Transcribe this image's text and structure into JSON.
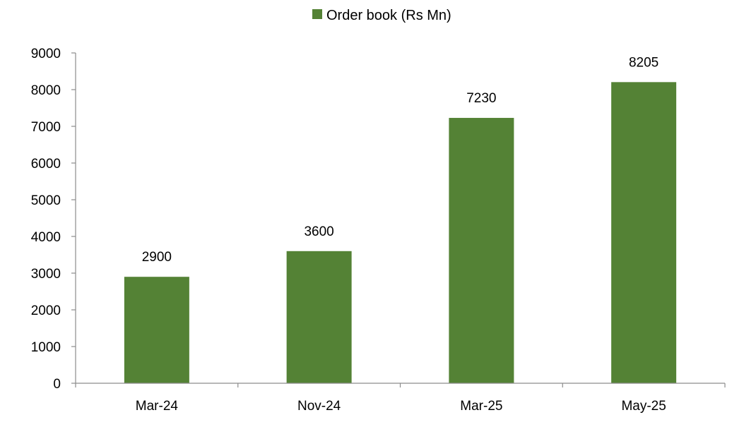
{
  "chart_data": {
    "type": "bar",
    "title": "",
    "xlabel": "",
    "ylabel": "",
    "categories": [
      "Mar-24",
      "Nov-24",
      "Mar-25",
      "May-25"
    ],
    "series": [
      {
        "name": "Order book (Rs Mn)",
        "values": [
          2900,
          3600,
          7230,
          8205
        ],
        "color": "#548235"
      }
    ],
    "ylim": [
      0,
      9000
    ],
    "yticks": [
      0,
      1000,
      2000,
      3000,
      4000,
      5000,
      6000,
      7000,
      8000,
      9000
    ],
    "grid": false,
    "legend_position": "top-center",
    "data_labels": true,
    "axis_color": "#8c8c8c"
  }
}
